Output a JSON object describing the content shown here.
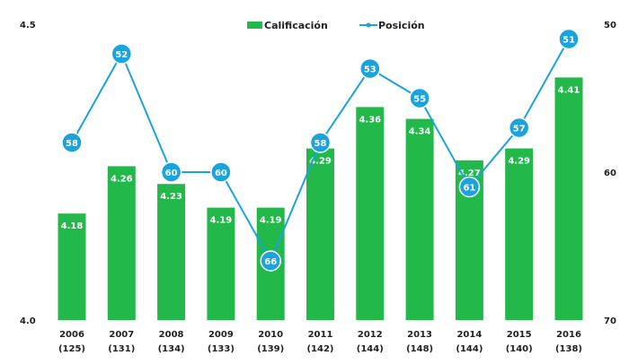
{
  "chart_data": {
    "type": "bar+line",
    "title": "",
    "categories": [
      "2006",
      "2007",
      "2008",
      "2009",
      "2010",
      "2011",
      "2012",
      "2013",
      "2014",
      "2015",
      "2016"
    ],
    "category_sublabels": [
      "(125)",
      "(131)",
      "(134)",
      "(133)",
      "(139)",
      "(142)",
      "(144)",
      "(148)",
      "(144)",
      "(140)",
      "(138)"
    ],
    "series": [
      {
        "name": "Calificación",
        "type": "bar",
        "axis": "left",
        "color": "#22b84a",
        "values": [
          4.18,
          4.26,
          4.23,
          4.19,
          4.19,
          4.29,
          4.36,
          4.34,
          4.27,
          4.29,
          4.41
        ],
        "labels": [
          "4.18",
          "4.26",
          "4.23",
          "4.19",
          "4.19",
          "4.29",
          "4.36",
          "4.34",
          "4.27",
          "4.29",
          "4.41"
        ]
      },
      {
        "name": "Posición",
        "type": "line",
        "axis": "right",
        "color": "#1aa3dc",
        "values": [
          58,
          52,
          60,
          60,
          66,
          58,
          53,
          55,
          61,
          57,
          51
        ],
        "labels": [
          "58",
          "52",
          "60",
          "60",
          "66",
          "58",
          "53",
          "55",
          "61",
          "57",
          "51"
        ]
      }
    ],
    "left_axis": {
      "ylim": [
        4.0,
        4.5
      ],
      "ticks": [
        "4.0",
        "4.5"
      ]
    },
    "right_axis": {
      "ylim": [
        50,
        70
      ],
      "inverted": true,
      "ticks": [
        "50",
        "60",
        "70"
      ]
    },
    "legend": {
      "placement": "top-center",
      "items": [
        "Calificación",
        "Posición"
      ]
    },
    "grid": false
  }
}
